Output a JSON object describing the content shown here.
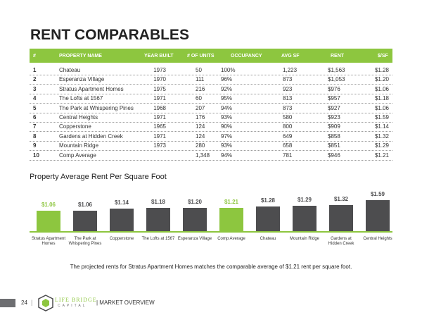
{
  "title": "RENT COMPARABLES",
  "table": {
    "header": [
      "#",
      "PROPERTY NAME",
      "YEAR BUILT",
      "# OF UNITS",
      "OCCUPANCY",
      "AVG SF",
      "RENT",
      "$/SF"
    ],
    "rows": [
      [
        "1",
        "Chateau",
        "1973",
        "50",
        "100%",
        "1,223",
        "$1,563",
        "$1.28"
      ],
      [
        "2",
        "Esperanza Village",
        "1970",
        "111",
        "96%",
        "873",
        "$1,053",
        "$1.20"
      ],
      [
        "3",
        "Stratus Apartment Homes",
        "1975",
        "216",
        "92%",
        "923",
        "$976",
        "$1.06"
      ],
      [
        "4",
        "The Lofts at 1567",
        "1971",
        "60",
        "95%",
        "813",
        "$957",
        "$1.18"
      ],
      [
        "5",
        "The Park at Whispering Pines",
        "1968",
        "207",
        "94%",
        "873",
        "$927",
        "$1.06"
      ],
      [
        "6",
        "Central Heights",
        "1971",
        "176",
        "93%",
        "580",
        "$923",
        "$1.59"
      ],
      [
        "7",
        "Copperstone",
        "1965",
        "124",
        "90%",
        "800",
        "$909",
        "$1.14"
      ],
      [
        "8",
        "Gardens at Hidden Creek",
        "1971",
        "124",
        "97%",
        "649",
        "$858",
        "$1.32"
      ],
      [
        "9",
        "Mountain Ridge",
        "1973",
        "280",
        "93%",
        "658",
        "$851",
        "$1.29"
      ],
      [
        "10",
        "Comp Average",
        null,
        "1,348",
        "94%",
        "781",
        "$946",
        "$1.21"
      ]
    ]
  },
  "chart_data": {
    "type": "bar",
    "title": "Property Average Rent Per Square Foot",
    "categories": [
      "Stratus Apartment Homes",
      "The Park at Whispering Pines",
      "Copperstone",
      "The Lofts at 1567",
      "Esperanza Village",
      "Comp Average",
      "Chateau",
      "Mountain Ridge",
      "Gardens at Hidden Creek",
      "Central Heights"
    ],
    "values": [
      1.06,
      1.06,
      1.14,
      1.18,
      1.2,
      1.21,
      1.28,
      1.29,
      1.32,
      1.59
    ],
    "value_labels": [
      "$1.06",
      "$1.06",
      "$1.14",
      "$1.18",
      "$1.20",
      "$1.21",
      "$1.28",
      "$1.29",
      "$1.32",
      "$1.59"
    ],
    "colors": [
      "#8dc63f",
      "#4d4d4f",
      "#4d4d4f",
      "#4d4d4f",
      "#4d4d4f",
      "#8dc63f",
      "#4d4d4f",
      "#4d4d4f",
      "#4d4d4f",
      "#4d4d4f"
    ]
  },
  "note": "The projected rents for Stratus Apartment Homes matches the comparable average of $1.21 rent per square foot.",
  "footer": {
    "page": "24",
    "logo_top": "LIFE BRIDGE",
    "logo_bottom": "CAPITAL",
    "section": "| MARKET OVERVIEW"
  }
}
